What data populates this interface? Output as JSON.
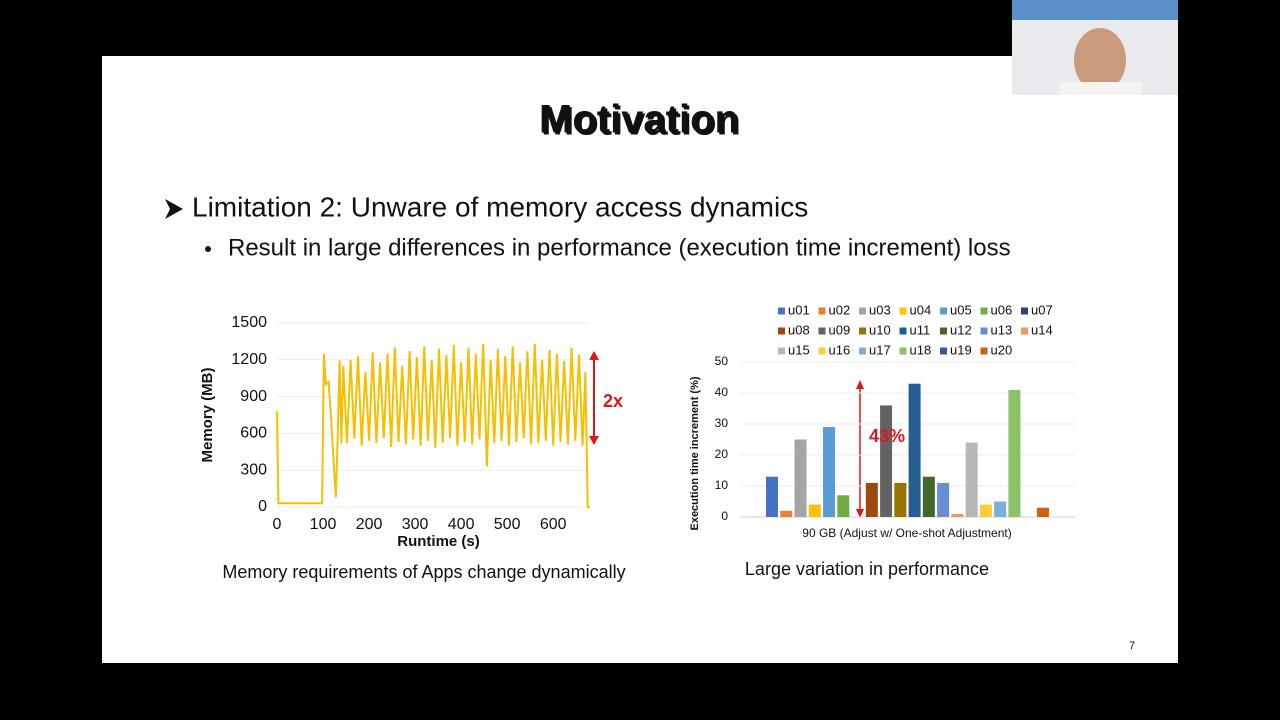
{
  "slide": {
    "title": "Motivation",
    "bullet": "Limitation 2: Unware of memory access dynamics",
    "sub_bullet": "Result in large differences in performance (execution time increment) loss",
    "left_caption": "Memory requirements of Apps change dynamically",
    "right_caption": "Large variation in performance",
    "page_number": "7"
  },
  "chart_data": [
    {
      "type": "line",
      "xlabel": "Runtime (s)",
      "ylabel": "Memory (MB)",
      "annotation": "2x",
      "color": "#f5c000",
      "grid": true,
      "xlim": [
        0,
        680
      ],
      "ylim": [
        0,
        1500
      ],
      "xticks": [
        0,
        100,
        200,
        300,
        400,
        500,
        600
      ],
      "yticks": [
        0,
        300,
        600,
        900,
        1200,
        1500
      ],
      "x": [
        0,
        3,
        50,
        98,
        102,
        106,
        112,
        118,
        124,
        128,
        132,
        136,
        140,
        144,
        152,
        160,
        168,
        176,
        184,
        192,
        200,
        208,
        216,
        224,
        232,
        240,
        248,
        256,
        264,
        272,
        280,
        288,
        296,
        304,
        312,
        320,
        328,
        336,
        344,
        352,
        360,
        368,
        376,
        384,
        392,
        400,
        408,
        416,
        424,
        432,
        440,
        448,
        456,
        464,
        472,
        480,
        488,
        496,
        504,
        512,
        520,
        528,
        536,
        544,
        552,
        560,
        568,
        576,
        584,
        592,
        600,
        608,
        616,
        624,
        632,
        640,
        648,
        656,
        664,
        670,
        675,
        680
      ],
      "y": [
        780,
        30,
        30,
        30,
        1250,
        1000,
        1020,
        700,
        300,
        80,
        600,
        1200,
        520,
        1150,
        520,
        1200,
        560,
        1230,
        500,
        1100,
        540,
        1260,
        520,
        1180,
        560,
        1250,
        490,
        1300,
        530,
        1150,
        510,
        1270,
        550,
        1220,
        500,
        1310,
        540,
        1200,
        480,
        1290,
        520,
        1240,
        560,
        1320,
        500,
        1180,
        530,
        1300,
        510,
        1250,
        550,
        1330,
        330,
        1200,
        520,
        1290,
        540,
        1230,
        500,
        1310,
        530,
        1180,
        560,
        1270,
        510,
        1330,
        520,
        1200,
        540,
        1280,
        500,
        1250,
        530,
        1190,
        510,
        1300,
        540,
        1240,
        500,
        1100,
        0,
        0
      ]
    },
    {
      "type": "bar",
      "xlabel": "90 GB (Adjust w/ One-shot Adjustment)",
      "ylabel": "Execution time increment (%)",
      "annotation": "43%",
      "grid": true,
      "categories": [
        "90 GB (Adjust w/ One-shot Adjustment)"
      ],
      "ylim": [
        0,
        50
      ],
      "yticks": [
        0,
        10,
        20,
        30,
        40,
        50
      ],
      "series": [
        {
          "name": "u01",
          "color": "#4472c4",
          "values": [
            13
          ]
        },
        {
          "name": "u02",
          "color": "#ed7d31",
          "values": [
            2
          ]
        },
        {
          "name": "u03",
          "color": "#a5a5a5",
          "values": [
            25
          ]
        },
        {
          "name": "u04",
          "color": "#ffc000",
          "values": [
            4
          ]
        },
        {
          "name": "u05",
          "color": "#5b9bd5",
          "values": [
            29
          ]
        },
        {
          "name": "u06",
          "color": "#70ad47",
          "values": [
            7
          ]
        },
        {
          "name": "u07",
          "color": "#264478",
          "values": [
            0
          ]
        },
        {
          "name": "u08",
          "color": "#9e480e",
          "values": [
            11
          ]
        },
        {
          "name": "u09",
          "color": "#636363",
          "values": [
            36
          ]
        },
        {
          "name": "u10",
          "color": "#997300",
          "values": [
            11
          ]
        },
        {
          "name": "u11",
          "color": "#255e91",
          "values": [
            43
          ]
        },
        {
          "name": "u12",
          "color": "#43682b",
          "values": [
            13
          ]
        },
        {
          "name": "u13",
          "color": "#698ed0",
          "values": [
            11
          ]
        },
        {
          "name": "u14",
          "color": "#f1975a",
          "values": [
            1
          ]
        },
        {
          "name": "u15",
          "color": "#b7b7b7",
          "values": [
            24
          ]
        },
        {
          "name": "u16",
          "color": "#ffcd33",
          "values": [
            4
          ]
        },
        {
          "name": "u17",
          "color": "#7cafdd",
          "values": [
            5
          ]
        },
        {
          "name": "u18",
          "color": "#8cc168",
          "values": [
            41
          ]
        },
        {
          "name": "u19",
          "color": "#335aa1",
          "values": [
            0
          ]
        },
        {
          "name": "u20",
          "color": "#d26012",
          "values": [
            3
          ]
        }
      ]
    }
  ]
}
